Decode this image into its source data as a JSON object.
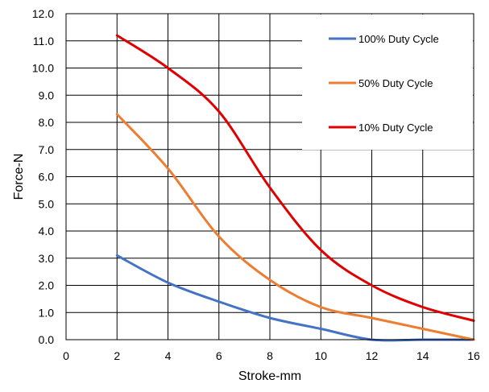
{
  "chart_data": {
    "type": "line",
    "title": "",
    "xlabel": "Stroke-mm",
    "ylabel": "Force-N",
    "xlim": [
      0,
      16
    ],
    "ylim": [
      0,
      12
    ],
    "x_ticks": [
      0,
      2,
      4,
      6,
      8,
      10,
      12,
      14,
      16
    ],
    "y_ticks": [
      0,
      1,
      2,
      3,
      4,
      5,
      6,
      7,
      8,
      9,
      10,
      11,
      12
    ],
    "x_tick_labels": [
      "0",
      "2",
      "4",
      "6",
      "8",
      "10",
      "12",
      "14",
      "16"
    ],
    "y_tick_labels": [
      "0.0",
      "1.0",
      "2.0",
      "3.0",
      "4.0",
      "5.0",
      "6.0",
      "7.0",
      "8.0",
      "9.0",
      "10.0",
      "11.0",
      "12.0"
    ],
    "grid": true,
    "legend_position": "top-right",
    "series": [
      {
        "name": "100% Duty Cycle",
        "color": "#4472C4",
        "x": [
          2,
          4,
          6,
          8,
          10,
          12,
          14,
          16
        ],
        "y": [
          3.1,
          2.1,
          1.4,
          0.8,
          0.4,
          0.0,
          0.0,
          0.0
        ]
      },
      {
        "name": "50% Duty Cycle",
        "color": "#ED7D31",
        "x": [
          2,
          4,
          6,
          8,
          10,
          12,
          14,
          16
        ],
        "y": [
          8.3,
          6.3,
          3.8,
          2.2,
          1.2,
          0.8,
          0.4,
          0.0
        ]
      },
      {
        "name": "10% Duty Cycle",
        "color": "#E00000",
        "x": [
          2,
          4,
          6,
          8,
          10,
          12,
          14,
          16
        ],
        "y": [
          11.2,
          10.0,
          8.4,
          5.6,
          3.3,
          2.0,
          1.2,
          0.7
        ]
      }
    ]
  }
}
